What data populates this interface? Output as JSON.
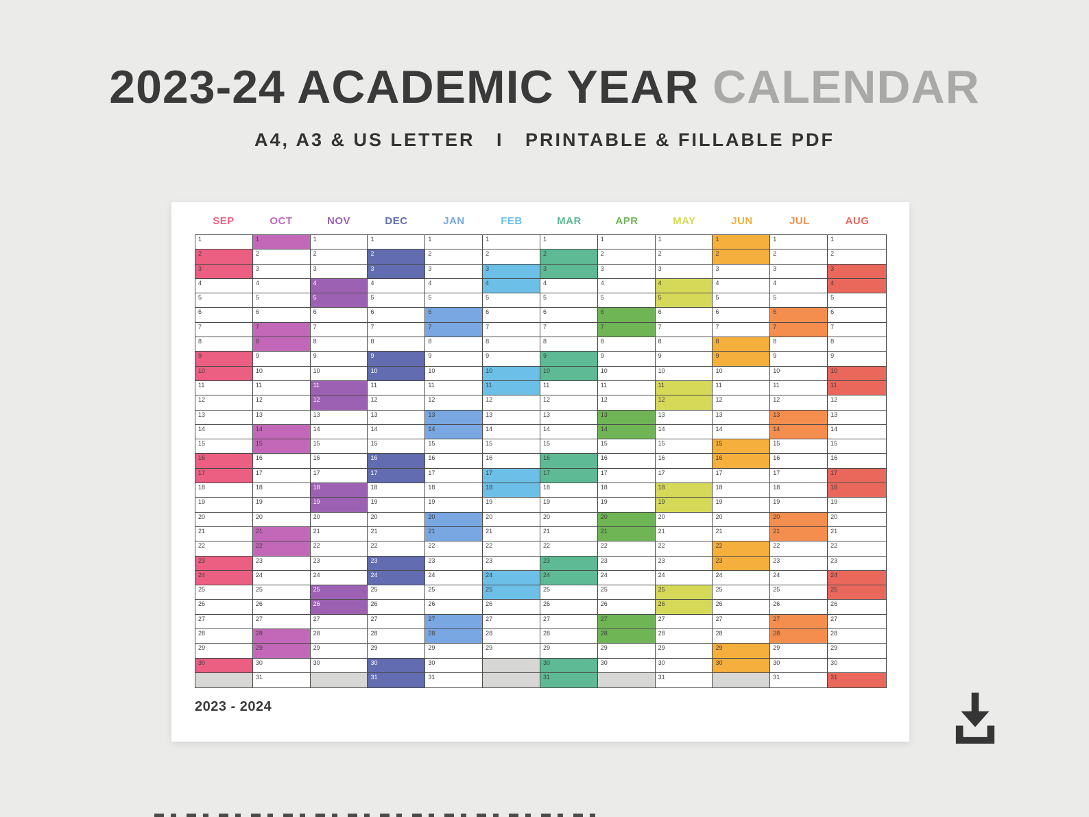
{
  "page": {
    "background": "#ebebe9",
    "title_primary": "2023-24 ACADEMIC YEAR",
    "title_secondary": " CALENDAR",
    "subtitle": "A4, A3 & US LETTER   I   PRINTABLE & FILLABLE PDF"
  },
  "calendar": {
    "year_label": "2023 - 2024",
    "grid_line_color": "#4a4a4a",
    "filler_color": "#d7d7d5",
    "max_days": 31,
    "months": [
      {
        "label": "SEP",
        "color": "#ec5f82",
        "days": 30,
        "weekends": [
          2,
          3,
          9,
          10,
          16,
          17,
          23,
          24,
          30
        ]
      },
      {
        "label": "OCT",
        "color": "#c368b9",
        "days": 31,
        "weekends": [
          1,
          7,
          8,
          14,
          15,
          21,
          22,
          28,
          29
        ]
      },
      {
        "label": "NOV",
        "color": "#9d61b3",
        "days": 30,
        "weekends": [
          4,
          5,
          11,
          12,
          18,
          19,
          25,
          26
        ],
        "cell_text": "#ffffff"
      },
      {
        "label": "DEC",
        "color": "#626cb0",
        "days": 31,
        "weekends": [
          2,
          3,
          9,
          10,
          16,
          17,
          23,
          24,
          30,
          31
        ],
        "cell_text": "#ffffff"
      },
      {
        "label": "JAN",
        "color": "#78a7e2",
        "days": 31,
        "weekends": [
          6,
          7,
          13,
          14,
          20,
          21,
          27,
          28
        ]
      },
      {
        "label": "FEB",
        "color": "#6cc0e8",
        "days": 29,
        "weekends": [
          3,
          4,
          10,
          11,
          17,
          18,
          24,
          25
        ]
      },
      {
        "label": "MAR",
        "color": "#5eba94",
        "days": 31,
        "weekends": [
          2,
          3,
          9,
          10,
          16,
          17,
          23,
          24,
          30,
          31
        ]
      },
      {
        "label": "APR",
        "color": "#6fb556",
        "days": 30,
        "weekends": [
          6,
          7,
          13,
          14,
          20,
          21,
          27,
          28
        ]
      },
      {
        "label": "MAY",
        "color": "#d5d957",
        "days": 31,
        "weekends": [
          4,
          5,
          11,
          12,
          18,
          19,
          25,
          26
        ]
      },
      {
        "label": "JUN",
        "color": "#f5af3d",
        "days": 30,
        "weekends": [
          1,
          2,
          8,
          9,
          15,
          16,
          22,
          23,
          29,
          30
        ]
      },
      {
        "label": "JUL",
        "color": "#f48e4f",
        "days": 31,
        "weekends": [
          6,
          7,
          13,
          14,
          20,
          21,
          27,
          28
        ]
      },
      {
        "label": "AUG",
        "color": "#ea675c",
        "days": 31,
        "weekends": [
          3,
          4,
          10,
          11,
          17,
          18,
          24,
          25,
          31
        ]
      }
    ]
  },
  "icons": {
    "download": "download-icon"
  }
}
